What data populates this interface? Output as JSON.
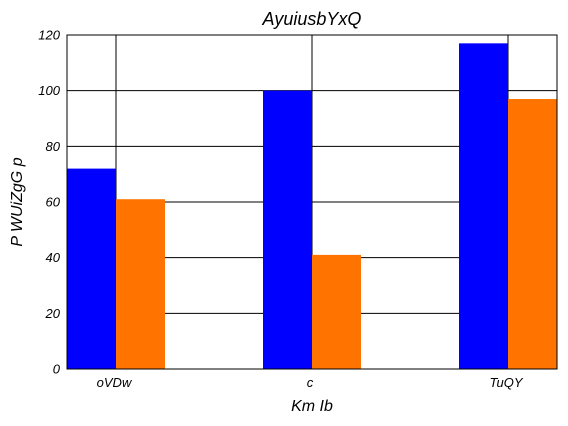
{
  "chart_data": {
    "type": "bar",
    "title": "AyuiusbYxQ",
    "xlabel": "Km Ib",
    "ylabel": "P WUiZgG p",
    "categories": [
      "oVDw",
      "c",
      "TuQY"
    ],
    "series": [
      {
        "values": [
          72,
          100,
          117
        ],
        "color": "#0000ff"
      },
      {
        "values": [
          61,
          41,
          97
        ],
        "color": "#ff7400"
      }
    ],
    "ylim": [
      0,
      120
    ],
    "yticks": [
      0,
      20,
      40,
      60,
      80,
      100,
      120
    ],
    "grid": true,
    "legend": "none"
  }
}
